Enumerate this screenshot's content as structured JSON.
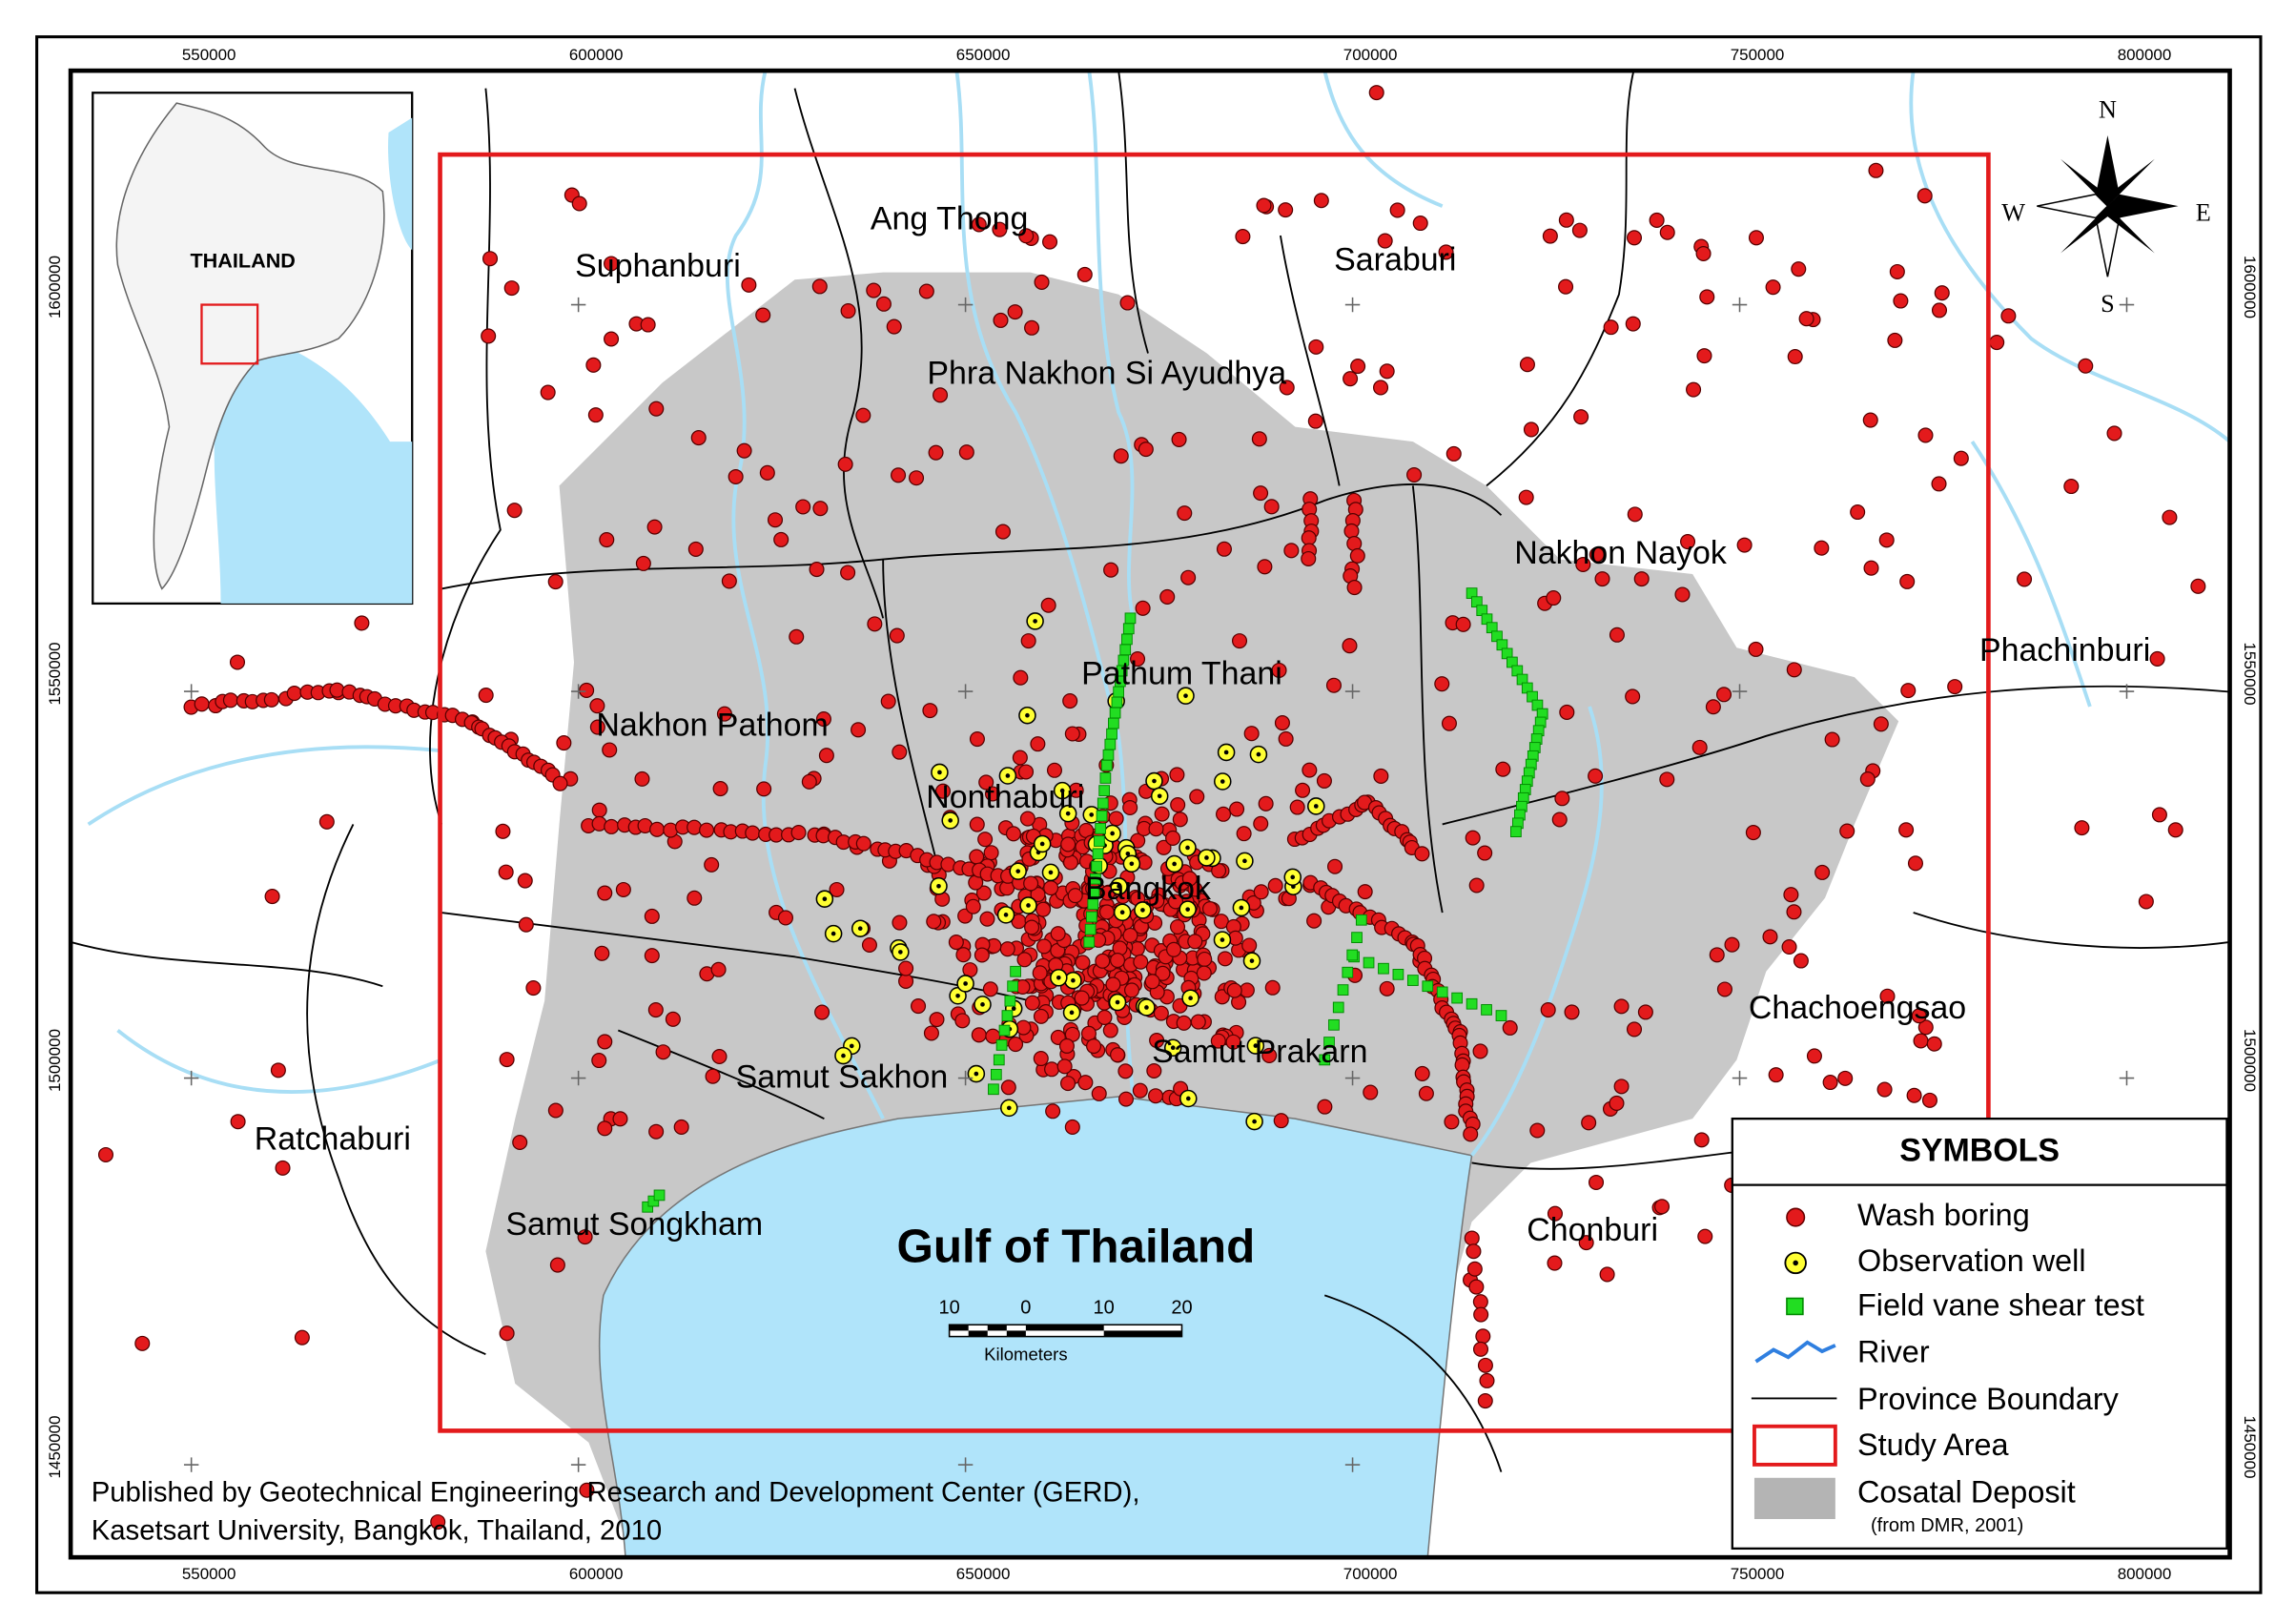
{
  "map": {
    "title": "Gulf of Thailand",
    "axes": {
      "top": [
        "550000",
        "600000",
        "650000",
        "700000",
        "750000",
        "800000"
      ],
      "bottom": [
        "550000",
        "600000",
        "650000",
        "700000",
        "750000",
        "800000"
      ],
      "left": [
        "1600000",
        "1550000",
        "1500000",
        "1450000"
      ],
      "right": [
        "1600000",
        "1550000",
        "1500000",
        "1450000"
      ]
    },
    "inset_label": "THAILAND",
    "compass": {
      "n": "N",
      "e": "E",
      "s": "S",
      "w": "W"
    },
    "places": [
      "Ang Thong",
      "Suphanburi",
      "Saraburi",
      "Phra Nakhon Si Ayudhya",
      "Nakhon Nayok",
      "Phachinburi",
      "Pathum Thani",
      "Nakhon Pathom",
      "Nonthaburi",
      "Bangkok",
      "Chachoengsao",
      "Samut Prakarn",
      "Samut Sakhon",
      "Ratchaburi",
      "Samut Songkham",
      "Chonburi"
    ],
    "scale_bar": {
      "labels": [
        "10",
        "0",
        "10",
        "20"
      ],
      "unit": "Kilometers"
    },
    "legend": {
      "title": "SYMBOLS",
      "items": [
        "Wash boring",
        "Observation well",
        "Field vane shear test",
        "River",
        "Province Boundary",
        "Study Area",
        "Cosatal Deposit"
      ],
      "note": "(from DMR, 2001)"
    },
    "credit": [
      "Published by Geotechnical Engineering Research and Development Center (GERD),",
      "Kasetsart University, Bangkok, Thailand, 2010"
    ]
  }
}
